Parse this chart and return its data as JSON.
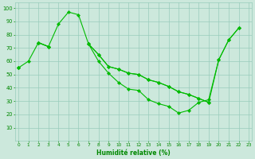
{
  "x": [
    0,
    1,
    2,
    3,
    4,
    5,
    6,
    7,
    8,
    9,
    10,
    11,
    12,
    13,
    14,
    15,
    16,
    17,
    18,
    19,
    20,
    21,
    22
  ],
  "line1": [
    55,
    60,
    74,
    71,
    88,
    97,
    95,
    73,
    60,
    51,
    44,
    39,
    38,
    31,
    28,
    26,
    21,
    23,
    29,
    31,
    61,
    76,
    85
  ],
  "line2": [
    55,
    null,
    74,
    71,
    null,
    null,
    null,
    73,
    65,
    56,
    54,
    51,
    50,
    46,
    44,
    41,
    37,
    35,
    32,
    29,
    61,
    76,
    85
  ],
  "line3": [
    55,
    null,
    74,
    71,
    null,
    null,
    null,
    73,
    65,
    56,
    54,
    51,
    50,
    46,
    44,
    41,
    37,
    35,
    32,
    29,
    null,
    null,
    null
  ],
  "line_color": "#00bb00",
  "bg_color": "#cce8dc",
  "grid_color": "#99ccbb",
  "xlabel": "Humidité relative (%)",
  "xlabel_color": "#008800",
  "tick_color": "#008800",
  "ylim": [
    0,
    104
  ],
  "yticks": [
    10,
    20,
    30,
    40,
    50,
    60,
    70,
    80,
    90,
    100
  ],
  "xlim": [
    -0.3,
    23.3
  ],
  "xticks": [
    0,
    1,
    2,
    3,
    4,
    5,
    6,
    7,
    8,
    9,
    10,
    11,
    12,
    13,
    14,
    15,
    16,
    17,
    18,
    19,
    20,
    21,
    22,
    23
  ]
}
